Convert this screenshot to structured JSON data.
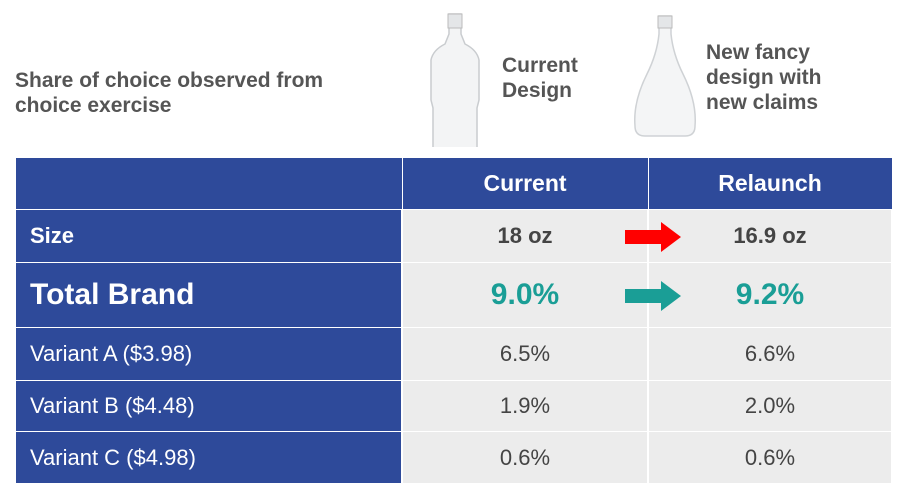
{
  "header": {
    "title": "Share of choice observed from choice exercise"
  },
  "designs": [
    {
      "label": "Current Design"
    },
    {
      "label": "New fancy design with new claims"
    }
  ],
  "table": {
    "columns": [
      "Current",
      "Relaunch"
    ],
    "rows": [
      [
        "Size",
        "18 oz",
        "16.9 oz"
      ],
      [
        "Total Brand",
        "9.0%",
        "9.2%"
      ],
      [
        "Variant A ($3.98)",
        "6.5%",
        "6.6%"
      ],
      [
        "Variant B ($4.48)",
        "1.9%",
        "2.0%"
      ],
      [
        "Variant C ($4.98)",
        "0.6%",
        "0.6%"
      ]
    ]
  }
}
